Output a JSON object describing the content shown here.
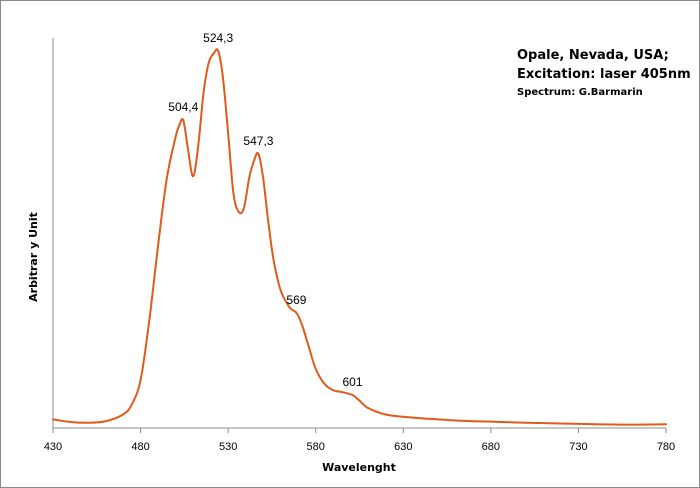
{
  "chart_data": {
    "type": "line",
    "title": "",
    "xlabel": "Wavelenght",
    "ylabel": "Arbitrar y Unit",
    "xlim": [
      430,
      780
    ],
    "ylim": [
      0,
      100
    ],
    "x_ticks": [
      "430",
      "480",
      "530",
      "580",
      "630",
      "680",
      "730",
      "780"
    ],
    "y_ticks_shown": false,
    "grid": false,
    "legend": "none",
    "line_color": "#E05A1A",
    "notes": [
      "Opale, Nevada, USA;",
      "Excitation: laser 405nm",
      "Spectrum: G.Barmarin"
    ],
    "series": [
      {
        "x": [
          430,
          440,
          450,
          460,
          470,
          475,
          480,
          485,
          490,
          495,
          500,
          502,
          504.4,
          507,
          510,
          513,
          516,
          519,
          522,
          524.3,
          527,
          530,
          533,
          536,
          539,
          542,
          545,
          547.3,
          550,
          553,
          556,
          560,
          565,
          569,
          572,
          576,
          580,
          585,
          590,
          595,
          601,
          605,
          610,
          620,
          630,
          640,
          650,
          660,
          670,
          680,
          700,
          720,
          740,
          760,
          780
        ],
        "y": [
          1.5,
          0.8,
          0.6,
          1.0,
          2.8,
          5.5,
          12,
          28,
          48,
          66,
          77,
          80,
          81.5,
          74,
          66.5,
          75,
          89,
          97,
          99.5,
          100,
          93,
          78,
          62,
          57,
          58,
          66,
          71,
          72.5,
          66,
          54,
          44,
          36,
          31.5,
          30,
          27,
          21,
          15,
          11,
          9.3,
          8.8,
          8.0,
          6.5,
          4.5,
          2.8,
          2.2,
          1.8,
          1.5,
          1.2,
          1.0,
          0.9,
          0.6,
          0.4,
          0.2,
          0.1,
          0.2
        ]
      }
    ],
    "annotations": [
      {
        "x": 504.4,
        "y": 81.5,
        "text": "504,4"
      },
      {
        "x": 524.3,
        "y": 100,
        "text": "524,3"
      },
      {
        "x": 547.3,
        "y": 72.5,
        "text": "547,3"
      },
      {
        "x": 569,
        "y": 30,
        "text": "569"
      },
      {
        "x": 601,
        "y": 8.0,
        "text": "601"
      }
    ]
  }
}
